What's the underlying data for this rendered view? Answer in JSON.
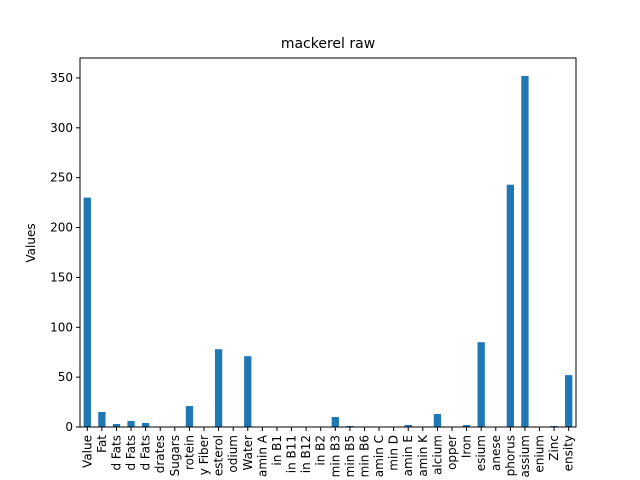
{
  "chart_data": {
    "type": "bar",
    "title": "mackerel raw",
    "xlabel": "",
    "ylabel": "Values",
    "ylim": [
      0,
      370
    ],
    "yticks": [
      0,
      50,
      100,
      150,
      200,
      250,
      300,
      350
    ],
    "grid": false,
    "legend": "none",
    "bar_color": "#1f77b4",
    "categories": [
      "Value",
      "Fat",
      "d Fats",
      "d Fats",
      "d Fats",
      "drates",
      "Sugars",
      "rotein",
      "y Fiber",
      "esterol",
      "odium",
      "Water",
      "amin A",
      "in B1",
      "in B11",
      "in B12",
      "in B2",
      "min B3",
      "min B5",
      "min B6",
      "amin C",
      "min D",
      "amin E",
      "amin K",
      "alcium",
      "opper",
      "Iron",
      "esium",
      "anese",
      "phorus",
      "assium",
      "enium",
      "Zinc",
      "ensity"
    ],
    "values": [
      230,
      15,
      3,
      6,
      4,
      0,
      0,
      21,
      0,
      78,
      0,
      71,
      0,
      0,
      0,
      0,
      0,
      10,
      1,
      0,
      0,
      0,
      2,
      0,
      13,
      0,
      2,
      85,
      0,
      243,
      352,
      0,
      1,
      52
    ]
  }
}
